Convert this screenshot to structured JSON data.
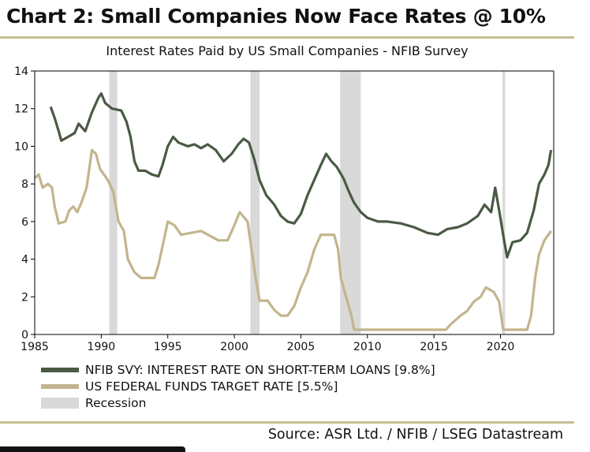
{
  "title": "Chart 2: Small Companies Now Face Rates @ 10%",
  "source": "Source: ASR Ltd. / NFIB / LSEG Datastream",
  "colors": {
    "nfib": "#4a5a44",
    "fedfunds": "#c2b58e",
    "recession": "#d9d9d9",
    "rule": "#c7bd92"
  },
  "chart_data": {
    "type": "line",
    "title": "Interest Rates Paid by US Small Companies - NFIB Survey",
    "xlabel": "",
    "ylabel": "",
    "xlim": [
      1985,
      2024
    ],
    "ylim": [
      0,
      14
    ],
    "xticks": [
      1985,
      1990,
      1995,
      2000,
      2005,
      2010,
      2015,
      2020
    ],
    "yticks": [
      0,
      2,
      4,
      6,
      8,
      10,
      12,
      14
    ],
    "grid": false,
    "legend": "bottom",
    "recessions": [
      [
        1990.6,
        1991.2
      ],
      [
        2001.2,
        2001.9
      ],
      [
        2007.95,
        2009.5
      ],
      [
        2020.15,
        2020.35
      ]
    ],
    "recession_label": "Recession",
    "series": [
      {
        "name": "NFIB SVY: INTEREST RATE ON SHORT-TERM LOANS [9.8%]",
        "color": "#4a5a44",
        "points": [
          [
            1986.2,
            12.1
          ],
          [
            1986.5,
            11.5
          ],
          [
            1986.8,
            10.8
          ],
          [
            1987.0,
            10.3
          ],
          [
            1987.5,
            10.5
          ],
          [
            1988.0,
            10.7
          ],
          [
            1988.3,
            11.2
          ],
          [
            1988.8,
            10.8
          ],
          [
            1989.3,
            11.8
          ],
          [
            1989.8,
            12.6
          ],
          [
            1990.0,
            12.8
          ],
          [
            1990.3,
            12.3
          ],
          [
            1990.8,
            12.0
          ],
          [
            1991.5,
            11.9
          ],
          [
            1991.9,
            11.3
          ],
          [
            1992.2,
            10.5
          ],
          [
            1992.5,
            9.2
          ],
          [
            1992.8,
            8.7
          ],
          [
            1993.3,
            8.7
          ],
          [
            1993.8,
            8.5
          ],
          [
            1994.3,
            8.4
          ],
          [
            1994.6,
            9.0
          ],
          [
            1995.0,
            10.0
          ],
          [
            1995.4,
            10.5
          ],
          [
            1995.8,
            10.2
          ],
          [
            1996.5,
            10.0
          ],
          [
            1997.0,
            10.1
          ],
          [
            1997.5,
            9.9
          ],
          [
            1998.0,
            10.1
          ],
          [
            1998.6,
            9.8
          ],
          [
            1999.2,
            9.2
          ],
          [
            1999.8,
            9.6
          ],
          [
            2000.3,
            10.1
          ],
          [
            2000.7,
            10.4
          ],
          [
            2001.1,
            10.2
          ],
          [
            2001.5,
            9.3
          ],
          [
            2001.9,
            8.2
          ],
          [
            2002.4,
            7.4
          ],
          [
            2003.0,
            6.9
          ],
          [
            2003.5,
            6.3
          ],
          [
            2004.0,
            6.0
          ],
          [
            2004.5,
            5.9
          ],
          [
            2005.0,
            6.4
          ],
          [
            2005.5,
            7.4
          ],
          [
            2006.0,
            8.2
          ],
          [
            2006.5,
            9.0
          ],
          [
            2006.9,
            9.6
          ],
          [
            2007.3,
            9.2
          ],
          [
            2007.7,
            8.9
          ],
          [
            2008.2,
            8.3
          ],
          [
            2008.6,
            7.6
          ],
          [
            2009.0,
            7.0
          ],
          [
            2009.5,
            6.5
          ],
          [
            2010.0,
            6.2
          ],
          [
            2010.8,
            6.0
          ],
          [
            2011.5,
            6.0
          ],
          [
            2012.5,
            5.9
          ],
          [
            2013.5,
            5.7
          ],
          [
            2014.5,
            5.4
          ],
          [
            2015.3,
            5.3
          ],
          [
            2016.0,
            5.6
          ],
          [
            2016.8,
            5.7
          ],
          [
            2017.5,
            5.9
          ],
          [
            2018.3,
            6.3
          ],
          [
            2018.8,
            6.9
          ],
          [
            2019.3,
            6.5
          ],
          [
            2019.6,
            7.8
          ],
          [
            2019.9,
            6.6
          ],
          [
            2020.2,
            5.3
          ],
          [
            2020.5,
            4.1
          ],
          [
            2020.9,
            4.9
          ],
          [
            2021.5,
            5.0
          ],
          [
            2022.0,
            5.4
          ],
          [
            2022.5,
            6.6
          ],
          [
            2022.9,
            8.0
          ],
          [
            2023.3,
            8.5
          ],
          [
            2023.6,
            9.0
          ],
          [
            2023.8,
            9.8
          ]
        ]
      },
      {
        "name": "US FEDERAL FUNDS TARGET RATE  [5.5%]",
        "color": "#c2b58e",
        "points": [
          [
            1985.0,
            8.3
          ],
          [
            1985.3,
            8.5
          ],
          [
            1985.6,
            7.8
          ],
          [
            1986.0,
            8.0
          ],
          [
            1986.3,
            7.8
          ],
          [
            1986.5,
            6.8
          ],
          [
            1986.8,
            5.9
          ],
          [
            1987.3,
            6.0
          ],
          [
            1987.6,
            6.6
          ],
          [
            1987.9,
            6.8
          ],
          [
            1988.2,
            6.5
          ],
          [
            1988.5,
            7.0
          ],
          [
            1988.9,
            7.8
          ],
          [
            1989.3,
            9.8
          ],
          [
            1989.6,
            9.6
          ],
          [
            1989.9,
            8.8
          ],
          [
            1990.5,
            8.2
          ],
          [
            1990.9,
            7.6
          ],
          [
            1991.3,
            6.0
          ],
          [
            1991.7,
            5.5
          ],
          [
            1992.0,
            4.0
          ],
          [
            1992.5,
            3.3
          ],
          [
            1993.0,
            3.0
          ],
          [
            1994.0,
            3.0
          ],
          [
            1994.3,
            3.7
          ],
          [
            1994.7,
            5.0
          ],
          [
            1995.0,
            6.0
          ],
          [
            1995.5,
            5.8
          ],
          [
            1996.0,
            5.3
          ],
          [
            1997.5,
            5.5
          ],
          [
            1998.8,
            5.0
          ],
          [
            1999.5,
            5.0
          ],
          [
            2000.0,
            5.8
          ],
          [
            2000.4,
            6.5
          ],
          [
            2001.0,
            6.0
          ],
          [
            2001.3,
            4.5
          ],
          [
            2001.6,
            3.0
          ],
          [
            2001.9,
            1.8
          ],
          [
            2002.5,
            1.8
          ],
          [
            2003.0,
            1.3
          ],
          [
            2003.5,
            1.0
          ],
          [
            2004.0,
            1.0
          ],
          [
            2004.5,
            1.5
          ],
          [
            2005.0,
            2.5
          ],
          [
            2005.5,
            3.3
          ],
          [
            2006.0,
            4.5
          ],
          [
            2006.5,
            5.3
          ],
          [
            2007.5,
            5.3
          ],
          [
            2007.8,
            4.5
          ],
          [
            2008.0,
            3.0
          ],
          [
            2008.4,
            2.0
          ],
          [
            2008.8,
            1.0
          ],
          [
            2009.0,
            0.25
          ],
          [
            2015.9,
            0.25
          ],
          [
            2016.2,
            0.5
          ],
          [
            2017.0,
            1.0
          ],
          [
            2017.5,
            1.25
          ],
          [
            2018.0,
            1.75
          ],
          [
            2018.5,
            2.0
          ],
          [
            2018.9,
            2.5
          ],
          [
            2019.5,
            2.25
          ],
          [
            2019.9,
            1.75
          ],
          [
            2020.2,
            0.25
          ],
          [
            2022.0,
            0.25
          ],
          [
            2022.3,
            1.0
          ],
          [
            2022.6,
            3.0
          ],
          [
            2022.9,
            4.25
          ],
          [
            2023.3,
            5.0
          ],
          [
            2023.8,
            5.5
          ]
        ]
      }
    ]
  }
}
